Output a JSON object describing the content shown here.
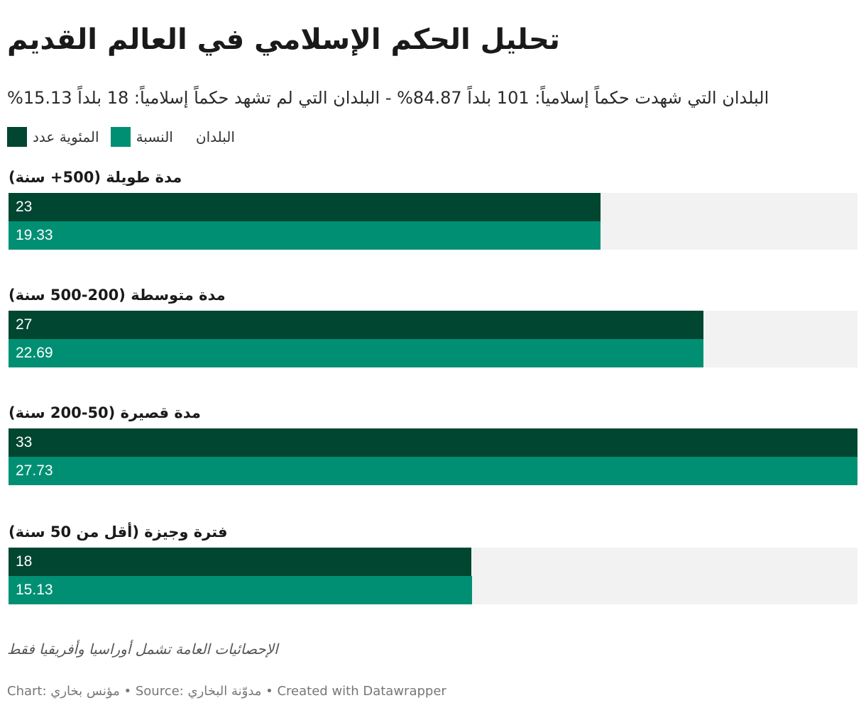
{
  "header": {
    "title": "تحليل الحكم الإسلامي في العالم القديم",
    "subtitle": "%البلدان التي شهدت حكماً إسلامياً: 101 بلداً 84.87% - البلدان التي لم تشهد حكماً إسلامياً: 18 بلداً 15.13"
  },
  "legend": {
    "items": [
      {
        "label": "المئوية عدد",
        "color": "#004630"
      },
      {
        "label": "النسبة",
        "color": "#008f73"
      },
      {
        "label": "البلدان",
        "color": ""
      }
    ]
  },
  "colors": {
    "series_dark": "#004630",
    "series_light": "#008f73",
    "track": "#f2f2f2"
  },
  "chart_data": {
    "type": "bar",
    "orientation": "horizontal",
    "categories": [
      "مدة طويلة (500+ سنة)",
      "مدة متوسطة (200-500 سنة)",
      "مدة قصيرة (50-200 سنة)",
      "فترة وجيزة (أقل من 50 سنة)"
    ],
    "series": [
      {
        "name": "عدد البلدان",
        "values": [
          23,
          27,
          33,
          18
        ],
        "labels": [
          "23",
          "27",
          "33",
          "18"
        ]
      },
      {
        "name": "النسبة المئوية",
        "values": [
          19.33,
          22.69,
          27.73,
          15.13
        ],
        "labels": [
          "19.33",
          "22.69",
          "27.73",
          "15.13"
        ]
      }
    ],
    "xlim": [
      0,
      33
    ],
    "grid": false,
    "legend_position": "top-left"
  },
  "notes": {
    "text": "الإحصائيات العامة تشمل أوراسيا وأفريقيا فقط"
  },
  "footer": {
    "text": "Chart: مؤنس بخاري • Source: مدوّنة البخاري • Created with Datawrapper"
  }
}
